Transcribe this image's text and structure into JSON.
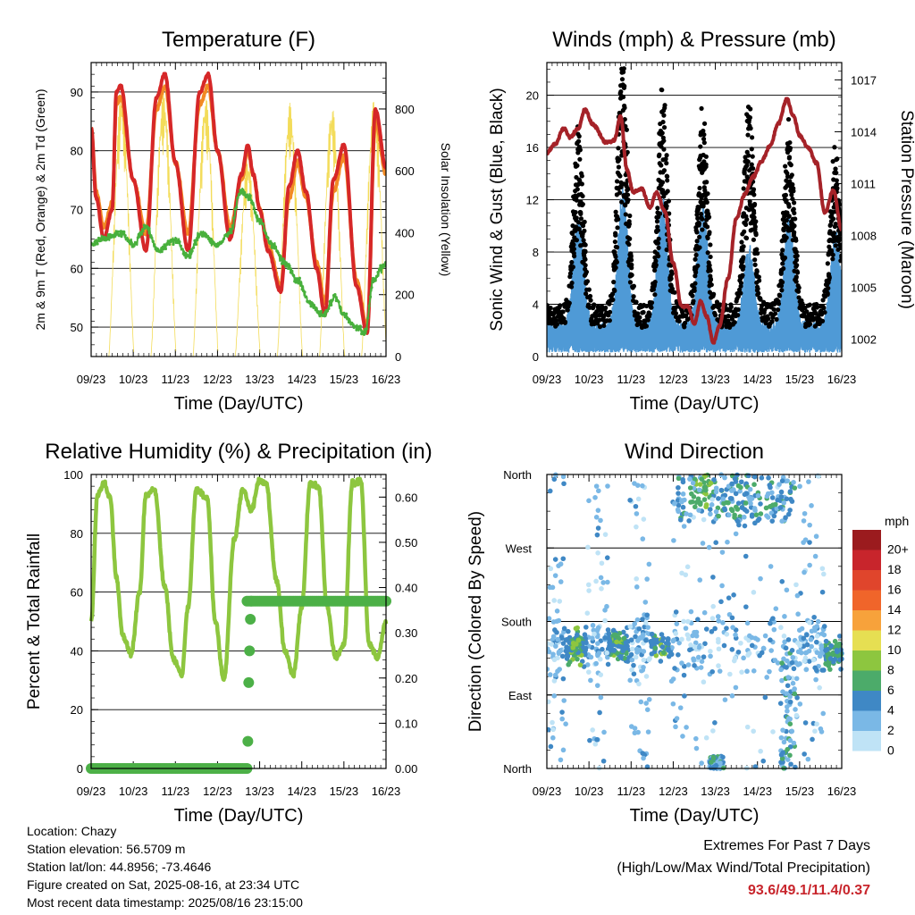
{
  "days": [
    "09/23",
    "10/23",
    "11/23",
    "12/23",
    "13/23",
    "14/23",
    "15/23",
    "16/23"
  ],
  "footer": {
    "location": "Location: Chazy",
    "elevation": "Station elevation: 56.5709 m",
    "latlon": "Station lat/lon: 44.8956; -73.4646",
    "created": "Figure created on Sat, 2025-08-16, at 23:34 UTC",
    "recent": "Most recent data timestamp: 2025/08/16 23:15:00",
    "extremes_title": "Extremes For Past 7 Days",
    "extremes_subtitle": "(High/Low/Max Wind/Total Precipitation)",
    "extremes_values": "93.6/49.1/11.4/0.37"
  },
  "chart_data": [
    {
      "type": "line",
      "title": "Temperature (F)",
      "xlabel": "Time (Day/UTC)",
      "ylabel": "2m & 9m T (Red, Orange) & 2m Td (Green)",
      "ylabel_right": "Solar Insolation (Yellow)",
      "x_range_days": [
        0,
        7
      ],
      "ylim": [
        45,
        95
      ],
      "yticks": [
        50,
        60,
        70,
        80,
        90
      ],
      "ylim_right": [
        0,
        950
      ],
      "yticks_right": [
        0,
        200,
        400,
        600,
        800
      ],
      "grid": true,
      "colors": {
        "t2m": "#d62728",
        "t9m": "#f28a24",
        "td": "#48b03c",
        "solar": "#f3dc5a"
      },
      "series": [
        {
          "name": "2m T (Red)",
          "x": [
            0,
            0.12,
            0.3,
            0.5,
            0.6,
            0.7,
            1.0,
            1.3,
            1.55,
            1.75,
            2.0,
            2.3,
            2.58,
            2.78,
            3.0,
            3.3,
            3.57,
            3.72,
            3.85,
            4.0,
            4.2,
            4.5,
            4.7,
            4.9,
            5.1,
            5.35,
            5.55,
            5.75,
            6.0,
            6.3,
            6.55,
            6.75,
            7.0
          ],
          "values": [
            84,
            72,
            65,
            70,
            90,
            91,
            75,
            63,
            89,
            93,
            78,
            63,
            90,
            93,
            80,
            65,
            76,
            81,
            76,
            70,
            63,
            56,
            74,
            80,
            73,
            60,
            52,
            75,
            81,
            57,
            49,
            87,
            77
          ]
        },
        {
          "name": "9m T (Orange)",
          "x": [
            0,
            0.12,
            0.3,
            0.5,
            0.6,
            0.7,
            1.0,
            1.3,
            1.55,
            1.75,
            2.0,
            2.3,
            2.58,
            2.78,
            3.0,
            3.3,
            3.57,
            3.72,
            3.85,
            4.0,
            4.2,
            4.5,
            4.7,
            4.9,
            5.1,
            5.35,
            5.55,
            5.75,
            6.0,
            6.3,
            6.55,
            6.75,
            7.0
          ],
          "values": [
            84,
            73,
            67,
            71,
            88,
            89,
            75,
            66,
            87,
            91,
            78,
            66,
            88,
            91,
            80,
            67,
            75,
            80,
            76,
            70,
            64,
            57,
            72,
            78,
            72,
            61,
            54,
            73,
            79,
            58,
            50,
            85,
            76
          ]
        },
        {
          "name": "2m Td (Green)",
          "x": [
            0,
            0.3,
            0.7,
            1.0,
            1.3,
            1.6,
            2.0,
            2.3,
            2.6,
            3.0,
            3.3,
            3.55,
            3.75,
            4.0,
            4.3,
            4.6,
            4.9,
            5.2,
            5.5,
            5.8,
            6.0,
            6.3,
            6.5,
            6.7,
            6.9,
            7.0
          ],
          "values": [
            64,
            65,
            66,
            64,
            67,
            63,
            65,
            62,
            66,
            64,
            66,
            73,
            72,
            68,
            64,
            61,
            58,
            54,
            52,
            55,
            52,
            50,
            49,
            58,
            60,
            61
          ]
        },
        {
          "name": "Solar Insolation (Yellow)",
          "peaks_x": [
            0.72,
            1.72,
            2.72,
            3.72,
            4.72,
            5.72,
            6.72
          ],
          "peaks": [
            850,
            860,
            840,
            640,
            820,
            810,
            835
          ]
        }
      ]
    },
    {
      "type": "line",
      "title": "Winds (mph) & Pressure (mb)",
      "xlabel": "Time (Day/UTC)",
      "ylabel": "Sonic Wind & Gust (Blue, Black)",
      "ylabel_right": "Station Pressure (Maroon)",
      "x_range_days": [
        0,
        7
      ],
      "ylim": [
        0,
        22.5
      ],
      "yticks": [
        0,
        4,
        8,
        12,
        16,
        20
      ],
      "ylim_right": [
        1001,
        1018
      ],
      "yticks_right": [
        1002,
        1005,
        1008,
        1011,
        1014,
        1017
      ],
      "grid": true,
      "colors": {
        "wind": "#4f9ad6",
        "gust": "#000000",
        "pressure": "#a52228"
      },
      "series": [
        {
          "name": "Station Pressure (Maroon)",
          "x": [
            0,
            0.2,
            0.4,
            0.55,
            0.75,
            0.9,
            1.1,
            1.4,
            1.6,
            1.75,
            1.9,
            2.05,
            2.25,
            2.45,
            2.6,
            2.8,
            3.0,
            3.2,
            3.35,
            3.5,
            3.65,
            3.8,
            3.95,
            4.1,
            4.3,
            4.5,
            4.7,
            4.9,
            5.1,
            5.3,
            5.5,
            5.7,
            5.85,
            6.0,
            6.2,
            6.4,
            6.6,
            6.8,
            7.0
          ],
          "values": [
            1012.8,
            1013.3,
            1014.2,
            1013.7,
            1014.2,
            1015.3,
            1014.4,
            1013.4,
            1013.5,
            1014.9,
            1011.8,
            1010.5,
            1010.7,
            1009.6,
            1010.5,
            1009.4,
            1006.4,
            1003.9,
            1003.9,
            1002.9,
            1004.2,
            1003.3,
            1001.8,
            1002.8,
            1005.5,
            1009.0,
            1010.4,
            1011.4,
            1012.3,
            1013.2,
            1014.5,
            1015.9,
            1014.9,
            1013.8,
            1013.1,
            1012.2,
            1009.3,
            1010.6,
            1008.3
          ]
        },
        {
          "name": "Sonic Wind (Blue)",
          "peaks_x": [
            0.75,
            1.8,
            2.75,
            3.7,
            4.8,
            5.75,
            6.85
          ],
          "peaks": [
            9,
            11,
            10,
            10,
            7,
            9,
            8
          ]
        },
        {
          "name": "Gust (Black)",
          "peaks_x": [
            0.75,
            1.8,
            2.75,
            3.7,
            4.8,
            5.75,
            6.85
          ],
          "peaks": [
            14,
            20.2,
            17,
            15.5,
            16.5,
            14.5,
            13
          ]
        }
      ]
    },
    {
      "type": "line",
      "title": "Relative Humidity (%) & Precipitation (in)",
      "xlabel": "Time (Day/UTC)",
      "ylabel": "Percent & Total Rainfall",
      "x_range_days": [
        0,
        7
      ],
      "ylim": [
        0,
        100
      ],
      "yticks": [
        0,
        20,
        40,
        60,
        80,
        100
      ],
      "ylim_right": [
        0,
        0.65
      ],
      "yticks_right": [
        "0.00",
        "0.10",
        "0.20",
        "0.30",
        "0.40",
        "0.50",
        "0.60"
      ],
      "grid": true,
      "colors": {
        "rh": "#8dc63f",
        "precip": "#4cb047"
      },
      "series": [
        {
          "name": "Relative Humidity",
          "x": [
            0,
            0.15,
            0.3,
            0.45,
            0.6,
            0.75,
            0.95,
            1.15,
            1.3,
            1.5,
            1.75,
            1.95,
            2.15,
            2.3,
            2.5,
            2.75,
            2.95,
            3.15,
            3.4,
            3.6,
            3.8,
            4.0,
            4.15,
            4.4,
            4.6,
            4.8,
            5.0,
            5.2,
            5.4,
            5.6,
            5.8,
            6.0,
            6.2,
            6.4,
            6.6,
            6.8,
            7.0
          ],
          "values": [
            50,
            93,
            97,
            92,
            65,
            45,
            39,
            60,
            93,
            95,
            62,
            37,
            32,
            55,
            95,
            92,
            50,
            30,
            78,
            95,
            88,
            98,
            97,
            64,
            40,
            32,
            55,
            97,
            96,
            55,
            38,
            42,
            97,
            98,
            42,
            38,
            50
          ]
        },
        {
          "name": "Total Precipitation",
          "x": [
            0,
            3.7,
            3.72,
            3.74,
            3.76,
            3.78,
            3.8,
            7.0
          ],
          "values": [
            0.0,
            0.0,
            0.06,
            0.19,
            0.26,
            0.33,
            0.37,
            0.37
          ]
        }
      ]
    },
    {
      "type": "scatter",
      "title": "Wind Direction",
      "xlabel": "Time (Day/UTC)",
      "ylabel": "Direction (Colored By Speed)",
      "x_range_days": [
        0,
        7
      ],
      "yticks": [
        "North",
        "East",
        "South",
        "West",
        "North"
      ],
      "grid": true,
      "legend_position": "right",
      "colorbar": {
        "title": "mph",
        "labels": [
          "20+",
          "18",
          "16",
          "14",
          "12",
          "10",
          "8",
          "6",
          "4",
          "2",
          "0"
        ],
        "colors": [
          "#9b1b1e",
          "#c8252c",
          "#e0452c",
          "#f0652a",
          "#f7a23b",
          "#e6df52",
          "#8dc63f",
          "#4cab6a",
          "#3f88c5",
          "#7ab8e6",
          "#bfe3f6"
        ]
      },
      "clusters": [
        {
          "x": [
            0.05,
            1.5
          ],
          "dir": [
            150,
            225
          ]
        },
        {
          "x": [
            1.5,
            3.2
          ],
          "dir": [
            140,
            220
          ]
        },
        {
          "x": [
            3.2,
            3.9
          ],
          "dir": [
            280,
            355
          ]
        },
        {
          "x": [
            3.9,
            4.6
          ],
          "dir": [
            320,
            360
          ]
        },
        {
          "x": [
            4.6,
            6.0
          ],
          "dir": [
            300,
            355
          ]
        },
        {
          "x": [
            5.5,
            6.0
          ],
          "dir": [
            0,
            150
          ]
        },
        {
          "x": [
            6.6,
            7.0
          ],
          "dir": [
            110,
            170
          ]
        }
      ]
    }
  ]
}
